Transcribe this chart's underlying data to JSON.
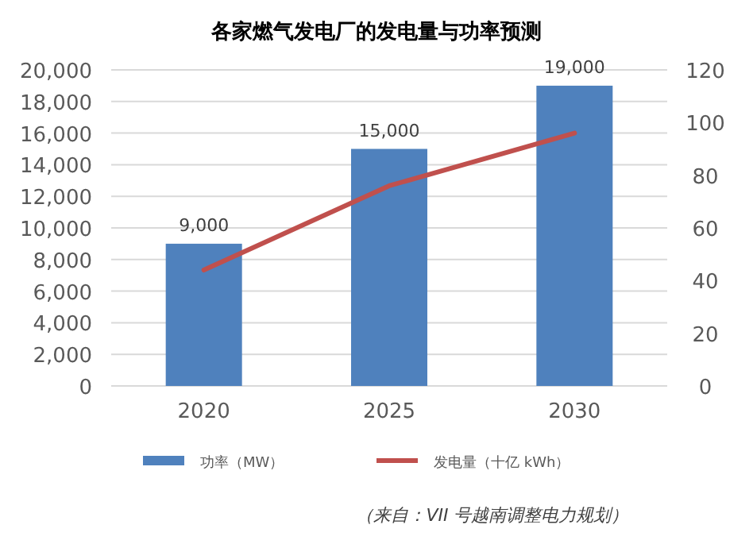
{
  "chart_data": {
    "type": "bar",
    "title": "各家燃气发电厂的发电量与功率预测",
    "categories": [
      "2020",
      "2025",
      "2030"
    ],
    "series": [
      {
        "name": "功率（MW）",
        "color": "#4f81bd",
        "values": [
          9000,
          15000,
          19000
        ],
        "value_labels": [
          "9,000",
          "15,000",
          "19,000"
        ]
      },
      {
        "name": "发电量（十亿 kWh）",
        "type": "line",
        "axis": "y2",
        "color": "#c0504d",
        "values": [
          44,
          76,
          96
        ]
      }
    ],
    "ylim": [
      0,
      20000
    ],
    "yticks": [
      {
        "value": 0,
        "label": "0"
      },
      {
        "value": 2000,
        "label": "2,000"
      },
      {
        "value": 4000,
        "label": "4,000"
      },
      {
        "value": 6000,
        "label": "6,000"
      },
      {
        "value": 8000,
        "label": "8,000"
      },
      {
        "value": 10000,
        "label": "10,000"
      },
      {
        "value": 12000,
        "label": "12,000"
      },
      {
        "value": 14000,
        "label": "14,000"
      },
      {
        "value": 16000,
        "label": "16,000"
      },
      {
        "value": 18000,
        "label": "18,000"
      },
      {
        "value": 20000,
        "label": "20,000"
      }
    ],
    "y2lim": [
      0,
      120
    ],
    "y2ticks": [
      0,
      20,
      40,
      60,
      80,
      100,
      120
    ],
    "grid": "y",
    "legend": "bottom",
    "marker": "none",
    "annotations": [
      "（来自：VII 号越南调整电力规划）"
    ]
  }
}
